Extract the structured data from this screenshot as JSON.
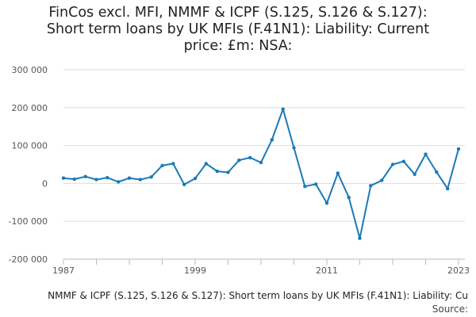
{
  "chart_data": {
    "type": "line",
    "title_lines": [
      "FinCos excl. MFI, NMMF & ICPF (S.125, S.126 & S.127):",
      "Short term loans by UK MFIs (F.41N1): Liability: Current",
      "price: £m: NSA:"
    ],
    "caption": "NMMF & ICPF (S.125, S.126 & S.127): Short term loans by UK MFIs (F.41N1): Liability: Cu",
    "source_label": "Source:",
    "x": [
      1987,
      1988,
      1989,
      1990,
      1991,
      1992,
      1993,
      1994,
      1995,
      1996,
      1997,
      1998,
      1999,
      2000,
      2001,
      2002,
      2003,
      2004,
      2005,
      2006,
      2007,
      2008,
      2009,
      2010,
      2011,
      2012,
      2013,
      2014,
      2015,
      2016,
      2017,
      2018,
      2019,
      2020,
      2021,
      2022,
      2023
    ],
    "values": [
      14000,
      11000,
      18000,
      10000,
      15000,
      4000,
      14000,
      10000,
      17000,
      47000,
      52000,
      -3000,
      13000,
      52000,
      32000,
      29000,
      61000,
      68000,
      55000,
      115000,
      196000,
      94000,
      -8000,
      -2000,
      -52000,
      27000,
      -37000,
      -145000,
      -6000,
      8000,
      50000,
      58000,
      24000,
      77000,
      30000,
      -14000,
      91000
    ],
    "x_ticks": [
      1987,
      1999,
      2011,
      2023
    ],
    "x_tick_labels": [
      "1987",
      "1999",
      "2011",
      "2023"
    ],
    "y_ticks": [
      300000,
      200000,
      100000,
      0,
      -100000,
      -200000
    ],
    "y_tick_labels": [
      "300 000",
      "200 000",
      "100 000",
      "0",
      "-100 000",
      "-200 000"
    ],
    "ylim": [
      -200000,
      300000
    ],
    "xlim": [
      1987,
      2023
    ],
    "grid": "horizontal",
    "line_color": "#1a7ab8",
    "grid_color": "#dddddd"
  }
}
